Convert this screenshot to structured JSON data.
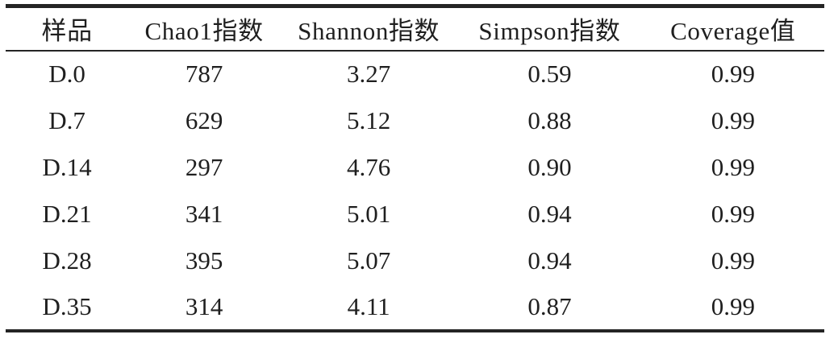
{
  "colors": {
    "text": "#1f1f1f",
    "rule": "#242424",
    "background": "#ffffff"
  },
  "table": {
    "columns": [
      {
        "label": "样品"
      },
      {
        "label": "Chao1指数"
      },
      {
        "label": "Shannon指数"
      },
      {
        "label": "Simpson指数"
      },
      {
        "label": "Coverage值"
      }
    ],
    "rows": [
      {
        "cells": [
          "D.0",
          "787",
          "3.27",
          "0.59",
          "0.99"
        ]
      },
      {
        "cells": [
          "D.7",
          "629",
          "5.12",
          "0.88",
          "0.99"
        ]
      },
      {
        "cells": [
          "D.14",
          "297",
          "4.76",
          "0.90",
          "0.99"
        ]
      },
      {
        "cells": [
          "D.21",
          "341",
          "5.01",
          "0.94",
          "0.99"
        ]
      },
      {
        "cells": [
          "D.28",
          "395",
          "5.07",
          "0.94",
          "0.99"
        ]
      },
      {
        "cells": [
          "D.35",
          "314",
          "4.11",
          "0.87",
          "0.99"
        ]
      }
    ]
  }
}
